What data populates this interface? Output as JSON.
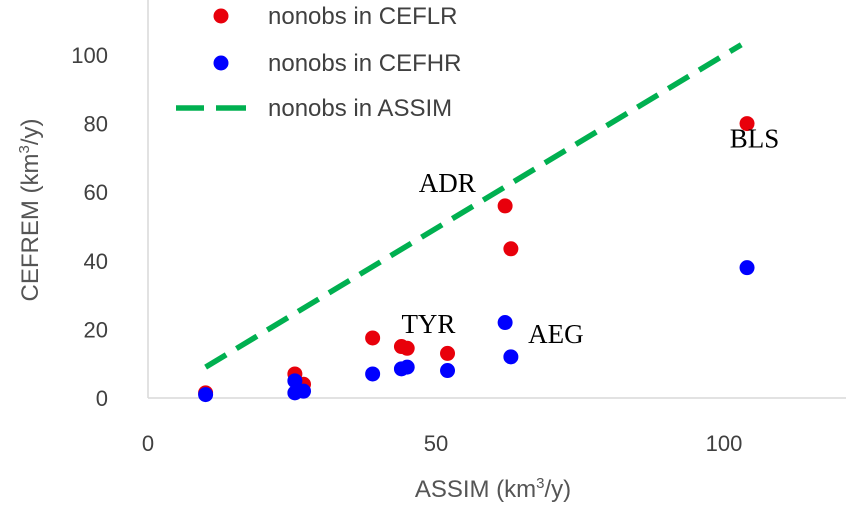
{
  "chart_data": {
    "type": "scatter",
    "xlabel_main": "ASSIM (km",
    "xlabel_sup": "3",
    "xlabel_tail": "/y)",
    "ylabel_main": "CEFREM (km",
    "ylabel_sup": "3",
    "ylabel_tail": "/y)",
    "xlim": [
      0,
      120
    ],
    "ylim": [
      0,
      110
    ],
    "x_ticks": [
      0,
      50,
      100
    ],
    "y_ticks": [
      0,
      20,
      40,
      60,
      80,
      100
    ],
    "grid": false,
    "legend_position": "top-left",
    "series": [
      {
        "name": "nonobs in CEFLR",
        "kind": "points",
        "color": "#e8000b",
        "points": [
          [
            10,
            1.5
          ],
          [
            25.5,
            7
          ],
          [
            27,
            4
          ],
          [
            39,
            17.5
          ],
          [
            44,
            15
          ],
          [
            45,
            14.5
          ],
          [
            52,
            13
          ],
          [
            62,
            56
          ],
          [
            63,
            43.5
          ],
          [
            104,
            80
          ]
        ]
      },
      {
        "name": "nonobs in CEFHR",
        "kind": "points",
        "color": "#0000ff",
        "points": [
          [
            10,
            1
          ],
          [
            25.5,
            5
          ],
          [
            25.5,
            1.5
          ],
          [
            27,
            2
          ],
          [
            39,
            7
          ],
          [
            44,
            8.5
          ],
          [
            45,
            9
          ],
          [
            52,
            8
          ],
          [
            62,
            22
          ],
          [
            63,
            12
          ],
          [
            104,
            38
          ]
        ]
      },
      {
        "name": "nonobs in ASSIM",
        "kind": "dashed-line",
        "color": "#00b050",
        "points": [
          [
            10,
            9
          ],
          [
            103,
            103
          ]
        ]
      }
    ],
    "annotations": [
      {
        "text": "BLS",
        "x": 101,
        "y": 73
      },
      {
        "text": "ADR",
        "x": 47,
        "y": 60
      },
      {
        "text": "TYR",
        "x": 44,
        "y": 19
      },
      {
        "text": "AEG",
        "x": 66,
        "y": 16
      }
    ]
  }
}
